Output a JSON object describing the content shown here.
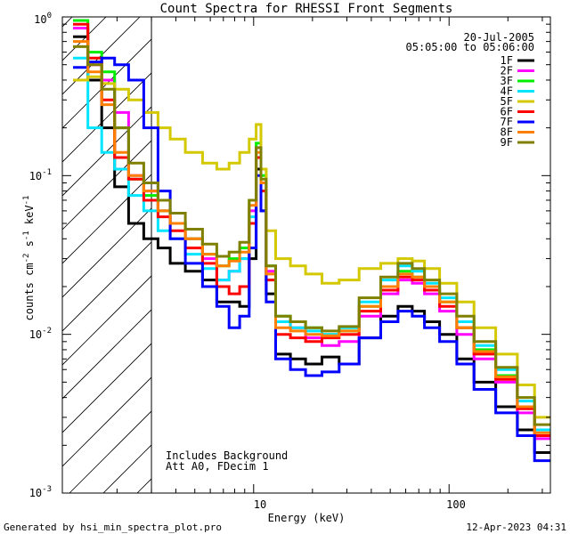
{
  "chart_data": {
    "type": "line",
    "title": "Count Spectra for RHESSI Front Segments",
    "xlabel": "Energy (keV)",
    "ylabel": "counts cm-2 s-1 keV-1",
    "xscale": "log",
    "yscale": "log",
    "xlim": [
      1.05,
      330
    ],
    "ylim": [
      0.001,
      1.0
    ],
    "x_tick_labels": [
      "10",
      "100"
    ],
    "y_tick_labels": [
      "10-3",
      "10-2",
      "10-1",
      "100"
    ],
    "date": "20-Jul-2005",
    "time_range": "05:05:00 to 05:06:00",
    "annotations": [
      "Includes Background",
      "Att A0, FDecim 1"
    ],
    "hatched_region_upper_kev": 3.0,
    "footer_left": "Generated by hsi_min_spectra_plot.pro",
    "footer_right": "12-Apr-2023 04:31",
    "x": [
      1.3,
      1.55,
      1.8,
      2.1,
      2.5,
      3.0,
      3.5,
      4.0,
      5.0,
      6.0,
      7.0,
      8.0,
      9.0,
      10.0,
      10.6,
      11.2,
      12.0,
      14.0,
      17.0,
      20.0,
      25.0,
      30.0,
      40.0,
      50.0,
      60.0,
      70.0,
      80.0,
      100.0,
      120.0,
      150.0,
      200.0,
      250.0,
      300.0
    ],
    "series": [
      {
        "name": "1F",
        "color": "#000000",
        "values": [
          0.75,
          0.4,
          0.2,
          0.085,
          0.05,
          0.04,
          0.035,
          0.028,
          0.025,
          0.022,
          0.016,
          0.016,
          0.015,
          0.03,
          0.11,
          0.06,
          0.018,
          0.0075,
          0.007,
          0.0065,
          0.0072,
          0.0065,
          0.0095,
          0.013,
          0.015,
          0.014,
          0.012,
          0.01,
          0.007,
          0.005,
          0.0035,
          0.0025,
          0.0018
        ]
      },
      {
        "name": "2F",
        "color": "#ff00ff",
        "values": [
          0.85,
          0.5,
          0.4,
          0.25,
          0.1,
          0.08,
          0.06,
          0.05,
          0.04,
          0.03,
          0.022,
          0.025,
          0.03,
          0.06,
          0.15,
          0.09,
          0.025,
          0.012,
          0.011,
          0.0095,
          0.0085,
          0.009,
          0.013,
          0.018,
          0.022,
          0.021,
          0.018,
          0.014,
          0.01,
          0.007,
          0.005,
          0.0032,
          0.0022
        ]
      },
      {
        "name": "3F",
        "color": "#00ee00",
        "values": [
          0.95,
          0.6,
          0.45,
          0.2,
          0.095,
          0.075,
          0.06,
          0.05,
          0.04,
          0.032,
          0.027,
          0.03,
          0.035,
          0.07,
          0.16,
          0.1,
          0.027,
          0.013,
          0.012,
          0.011,
          0.01,
          0.0105,
          0.015,
          0.02,
          0.025,
          0.023,
          0.02,
          0.016,
          0.011,
          0.008,
          0.0055,
          0.0035,
          0.0023
        ]
      },
      {
        "name": "4F",
        "color": "#00e5ff",
        "values": [
          0.55,
          0.2,
          0.14,
          0.11,
          0.075,
          0.06,
          0.045,
          0.04,
          0.032,
          0.026,
          0.022,
          0.025,
          0.03,
          0.055,
          0.13,
          0.08,
          0.022,
          0.012,
          0.011,
          0.0105,
          0.01,
          0.011,
          0.016,
          0.022,
          0.027,
          0.025,
          0.021,
          0.017,
          0.012,
          0.0085,
          0.006,
          0.0038,
          0.0025
        ]
      },
      {
        "name": "5F",
        "color": "#d4c800",
        "values": [
          0.4,
          0.42,
          0.38,
          0.35,
          0.3,
          0.25,
          0.2,
          0.17,
          0.14,
          0.12,
          0.11,
          0.12,
          0.14,
          0.17,
          0.21,
          0.11,
          0.045,
          0.03,
          0.027,
          0.024,
          0.021,
          0.022,
          0.026,
          0.028,
          0.03,
          0.029,
          0.026,
          0.021,
          0.016,
          0.011,
          0.0075,
          0.0048,
          0.003
        ]
      },
      {
        "name": "6F",
        "color": "#ff0000",
        "values": [
          0.9,
          0.55,
          0.3,
          0.13,
          0.095,
          0.07,
          0.055,
          0.045,
          0.035,
          0.028,
          0.02,
          0.018,
          0.02,
          0.05,
          0.13,
          0.08,
          0.022,
          0.01,
          0.0095,
          0.009,
          0.0095,
          0.01,
          0.014,
          0.019,
          0.023,
          0.022,
          0.019,
          0.015,
          0.011,
          0.0075,
          0.0052,
          0.0034,
          0.0023
        ]
      },
      {
        "name": "7F",
        "color": "#0000ff",
        "values": [
          0.48,
          0.52,
          0.55,
          0.5,
          0.4,
          0.2,
          0.08,
          0.04,
          0.028,
          0.02,
          0.015,
          0.011,
          0.013,
          0.035,
          0.1,
          0.06,
          0.016,
          0.007,
          0.006,
          0.0055,
          0.0058,
          0.0065,
          0.0095,
          0.012,
          0.014,
          0.013,
          0.011,
          0.009,
          0.0065,
          0.0045,
          0.0032,
          0.0023,
          0.0016
        ]
      },
      {
        "name": "8F",
        "color": "#ff8000",
        "values": [
          0.7,
          0.45,
          0.28,
          0.14,
          0.1,
          0.08,
          0.06,
          0.05,
          0.04,
          0.032,
          0.027,
          0.029,
          0.033,
          0.065,
          0.14,
          0.09,
          0.024,
          0.011,
          0.0105,
          0.01,
          0.0098,
          0.0105,
          0.015,
          0.02,
          0.024,
          0.023,
          0.02,
          0.016,
          0.011,
          0.0078,
          0.0054,
          0.0035,
          0.0024
        ]
      },
      {
        "name": "9F",
        "color": "#808000",
        "values": [
          0.65,
          0.5,
          0.35,
          0.2,
          0.12,
          0.09,
          0.07,
          0.058,
          0.046,
          0.037,
          0.031,
          0.033,
          0.038,
          0.07,
          0.15,
          0.095,
          0.027,
          0.013,
          0.012,
          0.011,
          0.0105,
          0.0112,
          0.017,
          0.023,
          0.028,
          0.026,
          0.022,
          0.018,
          0.013,
          0.009,
          0.0062,
          0.004,
          0.0027
        ]
      }
    ]
  }
}
